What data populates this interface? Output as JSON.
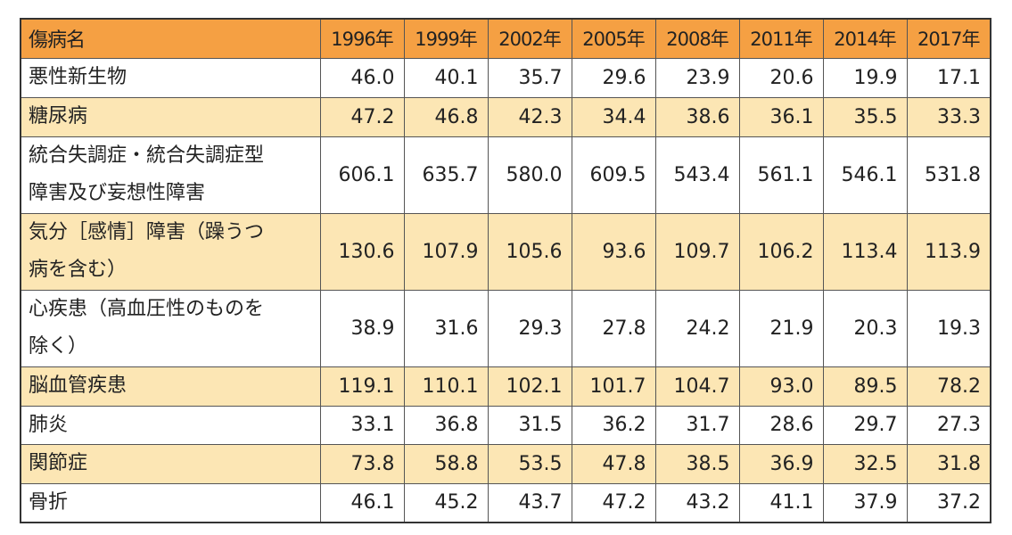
{
  "table": {
    "header_name": "傷病名",
    "years": [
      "1996年",
      "1999年",
      "2002年",
      "2005年",
      "2008年",
      "2011年",
      "2014年",
      "2017年"
    ],
    "rows": [
      {
        "name_lines": [
          "悪性新生物"
        ],
        "values": [
          "46.0",
          "40.1",
          "35.7",
          "29.6",
          "23.9",
          "20.6",
          "19.9",
          "17.1"
        ]
      },
      {
        "name_lines": [
          "糖尿病"
        ],
        "values": [
          "47.2",
          "46.8",
          "42.3",
          "34.4",
          "38.6",
          "36.1",
          "35.5",
          "33.3"
        ]
      },
      {
        "name_lines": [
          "統合失調症・統合失調症型",
          "障害及び妄想性障害"
        ],
        "values": [
          "606.1",
          "635.7",
          "580.0",
          "609.5",
          "543.4",
          "561.1",
          "546.1",
          "531.8"
        ]
      },
      {
        "name_lines": [
          "気分［感情］障害（躁うつ",
          "病を含む）"
        ],
        "values": [
          "130.6",
          "107.9",
          "105.6",
          "93.6",
          "109.7",
          "106.2",
          "113.4",
          "113.9"
        ]
      },
      {
        "name_lines": [
          "心疾患（高血圧性のものを",
          "除く）"
        ],
        "values": [
          "38.9",
          "31.6",
          "29.3",
          "27.8",
          "24.2",
          "21.9",
          "20.3",
          "19.3"
        ]
      },
      {
        "name_lines": [
          "脳血管疾患"
        ],
        "values": [
          "119.1",
          "110.1",
          "102.1",
          "101.7",
          "104.7",
          "93.0",
          "89.5",
          "78.2"
        ]
      },
      {
        "name_lines": [
          "肺炎"
        ],
        "values": [
          "33.1",
          "36.8",
          "31.5",
          "36.2",
          "31.7",
          "28.6",
          "29.7",
          "27.3"
        ]
      },
      {
        "name_lines": [
          "関節症"
        ],
        "values": [
          "73.8",
          "58.8",
          "53.5",
          "47.8",
          "38.5",
          "36.9",
          "32.5",
          "31.8"
        ]
      },
      {
        "name_lines": [
          "骨折"
        ],
        "values": [
          "46.1",
          "45.2",
          "43.7",
          "47.2",
          "43.2",
          "41.1",
          "37.9",
          "37.2"
        ]
      }
    ]
  },
  "colors": {
    "header_bg": "#f5a043",
    "row_stripe": "#fce6b4",
    "row_plain": "#ffffff"
  }
}
